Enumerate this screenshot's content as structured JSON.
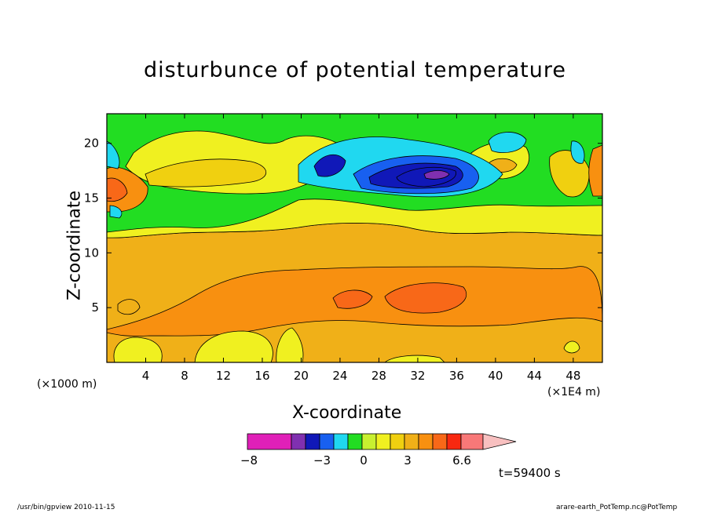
{
  "chart_data": {
    "type": "heatmap",
    "title": "disturbunce of potential temperature",
    "xlabel": "X-coordinate",
    "ylabel": "Z-coordinate",
    "x_unit_left": "(×1000 m)",
    "x_unit_right": "(×1E4 m)",
    "x_ticks": [
      4,
      8,
      12,
      16,
      20,
      24,
      28,
      32,
      36,
      40,
      44,
      48
    ],
    "y_ticks": [
      5,
      10,
      15,
      20
    ],
    "xlim": [
      0,
      51
    ],
    "ylim": [
      0,
      22.7
    ],
    "colorbar": {
      "colors": [
        "#e020b8",
        "#e020b8",
        "#e020b8",
        "#8030b0",
        "#1018b8",
        "#1860f0",
        "#20d8f0",
        "#22dd22",
        "#c8f030",
        "#f0f020",
        "#f0d010",
        "#f0b018",
        "#f89010",
        "#f86818",
        "#f82810",
        "#f87878"
      ],
      "extend_color": "#f8c0c0",
      "tick_labels": [
        "−8",
        "−3",
        "0",
        "3",
        "6.6"
      ],
      "tick_values": [
        -8,
        -3,
        0,
        3,
        6.6
      ]
    },
    "regions": [
      {
        "level": 7,
        "note": "upper layer (green, near 0)"
      },
      {
        "level": 11,
        "note": "mid-lower layer (orange)"
      },
      {
        "level": 12,
        "note": "lower band (dark orange)"
      },
      {
        "level": 13,
        "note": "core around x≈30-34, z≈6 (red-orange)"
      },
      {
        "level": 3,
        "note": "upper core around x≈32-34, z≈17.5 (purple)"
      }
    ]
  },
  "time_label": "t=59400 s",
  "footer": {
    "left": "/usr/bin/gpview   2010-11-15",
    "right": "arare-earth_PotTemp.nc@PotTemp"
  }
}
